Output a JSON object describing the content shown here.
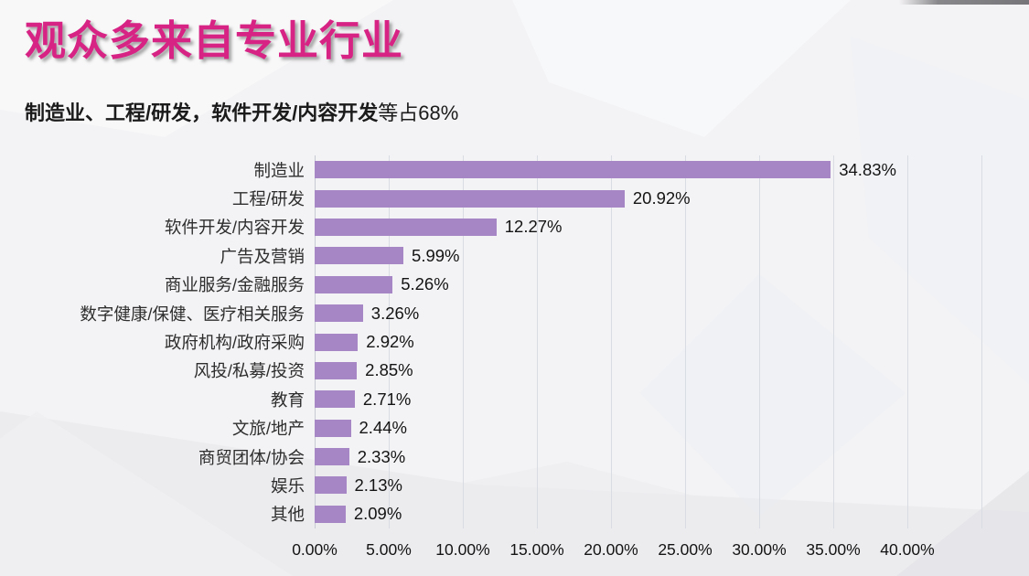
{
  "page": {
    "background_color": "#f3f2f4"
  },
  "header": {
    "title": "观众多来自专业行业",
    "title_color": "#d62384",
    "subtitle_bold": "制造业、工程/研发，软件开发/内容开发",
    "subtitle_regular": "等占68%"
  },
  "chart_data": {
    "type": "bar",
    "orientation": "horizontal",
    "title": "",
    "xlabel": "",
    "ylabel": "",
    "categories": [
      "制造业",
      "工程/研发",
      "软件开发/内容开发",
      "广告及营销",
      "商业服务/金融服务",
      "数字健康/保健、医疗相关服务",
      "政府机构/政府采购",
      "风投/私募/投资",
      "教育",
      "文旅/地产",
      "商贸团体/协会",
      "娱乐",
      "其他"
    ],
    "values": [
      34.83,
      20.92,
      12.27,
      5.99,
      5.26,
      3.26,
      2.92,
      2.85,
      2.71,
      2.44,
      2.33,
      2.13,
      2.09
    ],
    "value_labels": [
      "34.83%",
      "20.92%",
      "12.27%",
      "5.99%",
      "5.26%",
      "3.26%",
      "2.92%",
      "2.85%",
      "2.71%",
      "2.44%",
      "2.33%",
      "2.13%",
      "2.09%"
    ],
    "xticks": [
      "0.00%",
      "5.00%",
      "10.00%",
      "15.00%",
      "20.00%",
      "25.00%",
      "30.00%",
      "35.00%",
      "40.00%"
    ],
    "xlim": [
      0,
      45
    ],
    "grid": true,
    "legend_position": "none",
    "bar_color": "#a786c5",
    "gridline_color": "#d9dce3"
  }
}
